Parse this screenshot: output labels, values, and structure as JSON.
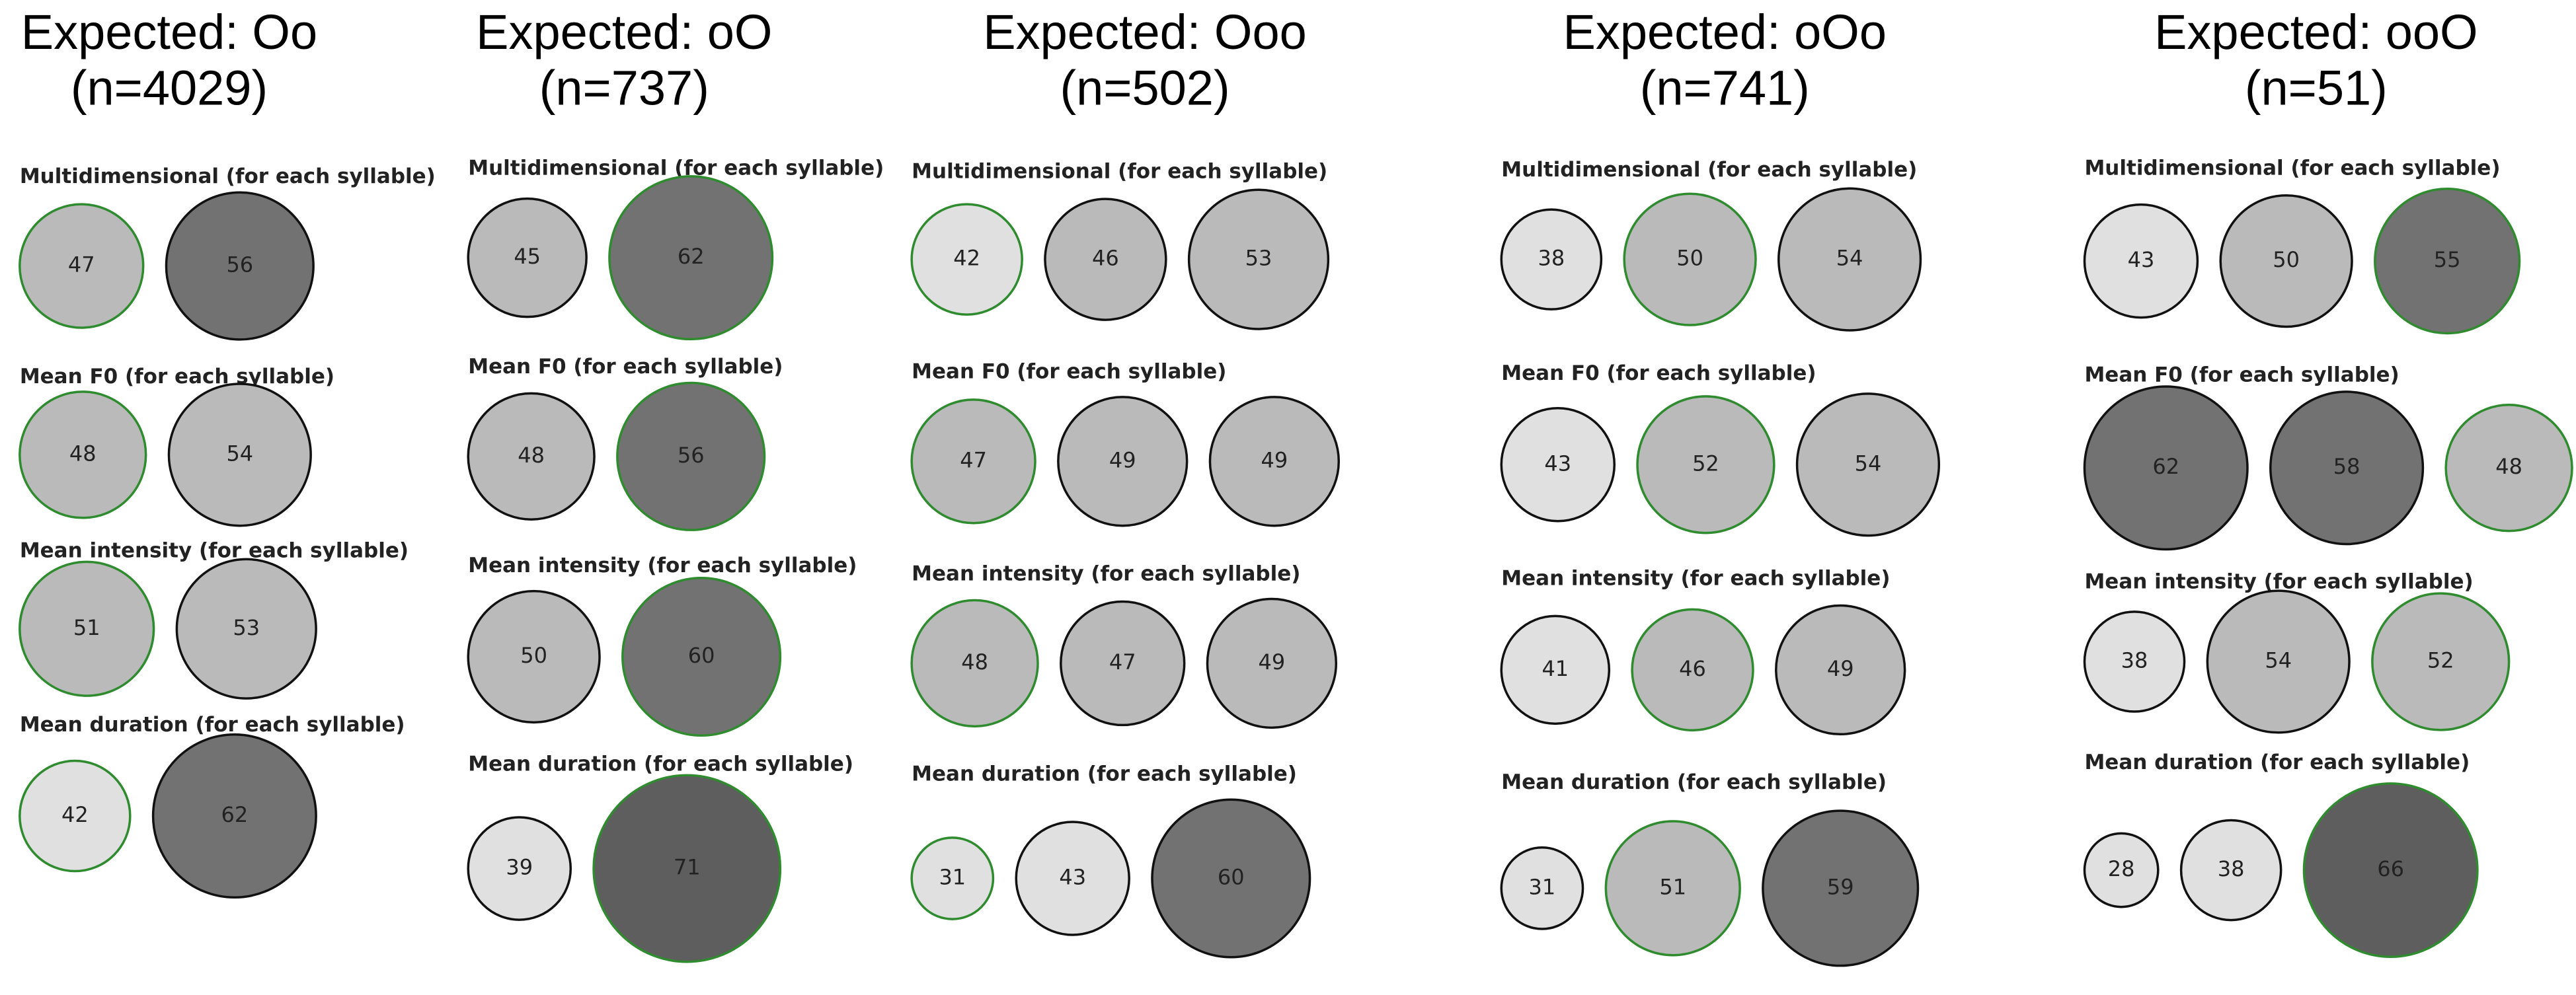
{
  "panels": [
    {
      "title": "Expected: Oo",
      "n": "(n=4029)",
      "rows": [
        {
          "label": "Multidimensional (for each syllable)",
          "circles": [
            {
              "value": 47,
              "fill": "#bababa",
              "stroke": "#2e8b2e"
            },
            {
              "value": 56,
              "fill": "#727272",
              "stroke": "#111111"
            }
          ]
        },
        {
          "label": "Mean F0 (for each syllable)",
          "circles": [
            {
              "value": 48,
              "fill": "#bababa",
              "stroke": "#2e8b2e"
            },
            {
              "value": 54,
              "fill": "#bababa",
              "stroke": "#111111"
            }
          ]
        },
        {
          "label": "Mean intensity (for each syllable)",
          "circles": [
            {
              "value": 51,
              "fill": "#bababa",
              "stroke": "#2e8b2e"
            },
            {
              "value": 53,
              "fill": "#bababa",
              "stroke": "#111111"
            }
          ]
        },
        {
          "label": "Mean duration (for each syllable)",
          "circles": [
            {
              "value": 42,
              "fill": "#e0e0e0",
              "stroke": "#2e8b2e"
            },
            {
              "value": 62,
              "fill": "#727272",
              "stroke": "#111111"
            }
          ]
        }
      ]
    },
    {
      "title": "Expected: oO",
      "n": "(n=737)",
      "rows": [
        {
          "label": "Multidimensional (for each syllable)",
          "circles": [
            {
              "value": 45,
              "fill": "#bababa",
              "stroke": "#111111"
            },
            {
              "value": 62,
              "fill": "#727272",
              "stroke": "#2e8b2e"
            }
          ]
        },
        {
          "label": "Mean F0 (for each syllable)",
          "circles": [
            {
              "value": 48,
              "fill": "#bababa",
              "stroke": "#111111"
            },
            {
              "value": 56,
              "fill": "#727272",
              "stroke": "#2e8b2e"
            }
          ]
        },
        {
          "label": "Mean intensity (for each syllable)",
          "circles": [
            {
              "value": 50,
              "fill": "#bababa",
              "stroke": "#111111"
            },
            {
              "value": 60,
              "fill": "#727272",
              "stroke": "#2e8b2e"
            }
          ]
        },
        {
          "label": "Mean duration (for each syllable)",
          "circles": [
            {
              "value": 39,
              "fill": "#e0e0e0",
              "stroke": "#111111"
            },
            {
              "value": 71,
              "fill": "#5e5e5e",
              "stroke": "#2e8b2e"
            }
          ]
        }
      ]
    },
    {
      "title": "Expected: Ooo",
      "n": "(n=502)",
      "rows": [
        {
          "label": "Multidimensional (for each syllable)",
          "circles": [
            {
              "value": 42,
              "fill": "#e0e0e0",
              "stroke": "#2e8b2e"
            },
            {
              "value": 46,
              "fill": "#bababa",
              "stroke": "#111111"
            },
            {
              "value": 53,
              "fill": "#bababa",
              "stroke": "#111111"
            }
          ]
        },
        {
          "label": "Mean F0 (for each syllable)",
          "circles": [
            {
              "value": 47,
              "fill": "#bababa",
              "stroke": "#2e8b2e"
            },
            {
              "value": 49,
              "fill": "#bababa",
              "stroke": "#111111"
            },
            {
              "value": 49,
              "fill": "#bababa",
              "stroke": "#111111"
            }
          ]
        },
        {
          "label": "Mean intensity (for each syllable)",
          "circles": [
            {
              "value": 48,
              "fill": "#bababa",
              "stroke": "#2e8b2e"
            },
            {
              "value": 47,
              "fill": "#bababa",
              "stroke": "#111111"
            },
            {
              "value": 49,
              "fill": "#bababa",
              "stroke": "#111111"
            }
          ]
        },
        {
          "label": "Mean duration (for each syllable)",
          "circles": [
            {
              "value": 31,
              "fill": "#e0e0e0",
              "stroke": "#2e8b2e"
            },
            {
              "value": 43,
              "fill": "#e0e0e0",
              "stroke": "#111111"
            },
            {
              "value": 60,
              "fill": "#727272",
              "stroke": "#111111"
            }
          ]
        }
      ]
    },
    {
      "title": "Expected: oOo",
      "n": "(n=741)",
      "rows": [
        {
          "label": "Multidimensional (for each syllable)",
          "circles": [
            {
              "value": 38,
              "fill": "#e0e0e0",
              "stroke": "#111111"
            },
            {
              "value": 50,
              "fill": "#bababa",
              "stroke": "#2e8b2e"
            },
            {
              "value": 54,
              "fill": "#bababa",
              "stroke": "#111111"
            }
          ]
        },
        {
          "label": "Mean F0 (for each syllable)",
          "circles": [
            {
              "value": 43,
              "fill": "#e0e0e0",
              "stroke": "#111111"
            },
            {
              "value": 52,
              "fill": "#bababa",
              "stroke": "#2e8b2e"
            },
            {
              "value": 54,
              "fill": "#bababa",
              "stroke": "#111111"
            }
          ]
        },
        {
          "label": "Mean intensity (for each syllable)",
          "circles": [
            {
              "value": 41,
              "fill": "#e0e0e0",
              "stroke": "#111111"
            },
            {
              "value": 46,
              "fill": "#bababa",
              "stroke": "#2e8b2e"
            },
            {
              "value": 49,
              "fill": "#bababa",
              "stroke": "#111111"
            }
          ]
        },
        {
          "label": "Mean duration (for each syllable)",
          "circles": [
            {
              "value": 31,
              "fill": "#e0e0e0",
              "stroke": "#111111"
            },
            {
              "value": 51,
              "fill": "#bababa",
              "stroke": "#2e8b2e"
            },
            {
              "value": 59,
              "fill": "#727272",
              "stroke": "#111111"
            }
          ]
        }
      ]
    },
    {
      "title": "Expected: ooO",
      "n": "(n=51)",
      "rows": [
        {
          "label": "Multidimensional (for each syllable)",
          "circles": [
            {
              "value": 43,
              "fill": "#e0e0e0",
              "stroke": "#111111"
            },
            {
              "value": 50,
              "fill": "#bababa",
              "stroke": "#111111"
            },
            {
              "value": 55,
              "fill": "#727272",
              "stroke": "#2e8b2e"
            }
          ]
        },
        {
          "label": "Mean F0 (for each syllable)",
          "circles": [
            {
              "value": 62,
              "fill": "#727272",
              "stroke": "#111111"
            },
            {
              "value": 58,
              "fill": "#727272",
              "stroke": "#111111"
            },
            {
              "value": 48,
              "fill": "#bababa",
              "stroke": "#2e8b2e"
            }
          ]
        },
        {
          "label": "Mean intensity (for each syllable)",
          "circles": [
            {
              "value": 38,
              "fill": "#e0e0e0",
              "stroke": "#111111"
            },
            {
              "value": 54,
              "fill": "#bababa",
              "stroke": "#111111"
            },
            {
              "value": 52,
              "fill": "#bababa",
              "stroke": "#2e8b2e"
            }
          ]
        },
        {
          "label": "Mean duration (for each syllable)",
          "circles": [
            {
              "value": 28,
              "fill": "#e0e0e0",
              "stroke": "#111111"
            },
            {
              "value": 38,
              "fill": "#e0e0e0",
              "stroke": "#111111"
            },
            {
              "value": 66,
              "fill": "#5e5e5e",
              "stroke": "#2e8b2e"
            }
          ]
        }
      ]
    }
  ]
}
